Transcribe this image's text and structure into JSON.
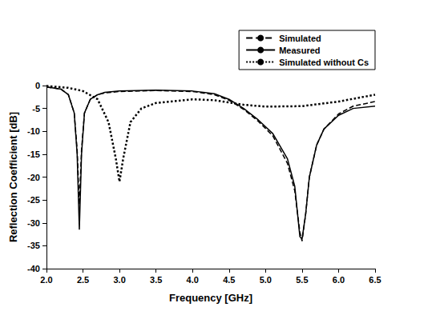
{
  "chart_data": {
    "type": "line",
    "x_label": "Frequency [GHz]",
    "y_label": "Reflection Coefficient [dB]",
    "xlim": [
      2,
      6.5
    ],
    "xticks": [
      {
        "value": 2,
        "label": "2.0"
      },
      {
        "value": 2.5,
        "label": "2.5"
      },
      {
        "value": 3,
        "label": "3.0"
      },
      {
        "value": 3.5,
        "label": "3.5"
      },
      {
        "value": 4,
        "label": "4.0"
      },
      {
        "value": 4.5,
        "label": "4.5"
      },
      {
        "value": 5,
        "label": "5.0"
      },
      {
        "value": 5.5,
        "label": "5.5"
      },
      {
        "value": 6,
        "label": "6.0"
      },
      {
        "value": 6.5,
        "label": "6.5"
      }
    ],
    "ylim": [
      -40,
      0
    ],
    "yticks": [
      -40,
      -35,
      -30,
      -25,
      -20,
      -15,
      -10,
      -5,
      0
    ],
    "grid": false,
    "legend": "top-right",
    "series": [
      {
        "name": "Simulated",
        "color": "#000000",
        "line_style": "dashed",
        "marker": "none",
        "x": [
          2.0,
          2.2,
          2.3,
          2.38,
          2.42,
          2.45,
          2.48,
          2.52,
          2.6,
          2.7,
          2.8,
          3.0,
          3.5,
          4.0,
          4.3,
          4.5,
          4.7,
          4.9,
          5.1,
          5.3,
          5.4,
          5.47,
          5.5,
          5.55,
          5.6,
          5.7,
          5.8,
          6.0,
          6.2,
          6.5
        ],
        "values": [
          -0.3,
          -0.8,
          -2,
          -6,
          -14,
          -26,
          -14,
          -6,
          -3,
          -2,
          -1.6,
          -1.3,
          -1.1,
          -1.3,
          -2,
          -3.2,
          -5.2,
          -7.8,
          -11,
          -17,
          -23,
          -32,
          -34,
          -28,
          -20,
          -13,
          -9.5,
          -6.2,
          -4.5,
          -3.5
        ]
      },
      {
        "name": "Measured",
        "color": "#000000",
        "line_style": "solid",
        "marker": "none",
        "x": [
          2.0,
          2.2,
          2.3,
          2.38,
          2.42,
          2.45,
          2.48,
          2.52,
          2.6,
          2.7,
          2.8,
          3.0,
          3.5,
          4.0,
          4.3,
          4.5,
          4.7,
          4.9,
          5.1,
          5.3,
          5.4,
          5.47,
          5.5,
          5.55,
          5.6,
          5.7,
          5.8,
          6.0,
          6.2,
          6.5
        ],
        "values": [
          -0.3,
          -0.8,
          -2,
          -6,
          -15,
          -31.5,
          -15,
          -6,
          -3,
          -2,
          -1.5,
          -1.2,
          -1.0,
          -1.2,
          -1.8,
          -3,
          -5,
          -7.5,
          -10.5,
          -16,
          -22,
          -33,
          -33.5,
          -28,
          -20,
          -13,
          -9.5,
          -6.5,
          -5,
          -4.5
        ]
      },
      {
        "name": "Simulated without Cs",
        "color": "#000000",
        "line_style": "dotted",
        "marker": "none",
        "x": [
          2.0,
          2.3,
          2.5,
          2.7,
          2.85,
          2.95,
          3.0,
          3.05,
          3.15,
          3.3,
          3.5,
          4.0,
          4.3,
          4.7,
          5.0,
          5.5,
          6.0,
          6.5
        ],
        "values": [
          -0.1,
          -0.5,
          -1.2,
          -3,
          -8,
          -16,
          -21,
          -16,
          -8,
          -5,
          -3.8,
          -3,
          -3.2,
          -4.2,
          -4.6,
          -4.5,
          -3.5,
          -2
        ]
      }
    ]
  }
}
